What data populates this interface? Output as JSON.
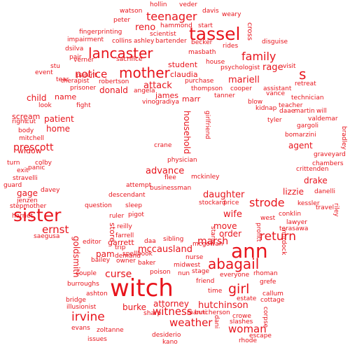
{
  "color": "#e8141c",
  "words": [
    "hollin",
    "veder",
    "watson",
    "davis",
    "weary",
    "peter",
    "teenager",
    "hammond",
    "start",
    "fingerprinting",
    "tassel",
    "scientist",
    "collins",
    "ashley",
    "bartender",
    "becker",
    "rides",
    "disguise",
    "impairment",
    "reno",
    "dsilva",
    "lancaster",
    "masbath",
    "sacrifice",
    "family",
    "verner",
    "pair",
    "house",
    "stu",
    "visit",
    "psychologist",
    "event",
    "mother",
    "student",
    "parent",
    "claudia",
    "rage",
    "tear",
    "notice",
    "therapist",
    "s",
    "robertson",
    "mariell",
    "retreat",
    "prisoner",
    "donald",
    "attack",
    "purchase",
    "assistant",
    "vance",
    "angela",
    "thompson",
    "cooper",
    "cross",
    "name",
    "james",
    "marr",
    "tanner",
    "technician",
    "child",
    "blow",
    "look",
    "fight",
    "vinogradiya",
    "teacher",
    "kidnap",
    "daae",
    "martin",
    "will",
    "scream",
    "patient",
    "right",
    "cut",
    "tyler",
    "valdemar",
    "gargoli",
    "body",
    "home",
    "girlfriend",
    "bomarzini",
    "mitchell",
    "household",
    "agent",
    "prescott",
    "crane",
    "graveyard",
    "widow",
    "bradley",
    "chambers",
    "turn",
    "colby",
    "physician",
    "crittenden",
    "exit",
    "panic",
    "advance",
    "flee",
    "mckinley",
    "stravelli",
    "drake",
    "guard",
    "attempt",
    "businessman",
    "daughter",
    "lizzie",
    "danelli",
    "davey",
    "gage",
    "descendant",
    "strode",
    "jenzen",
    "stockard",
    "price",
    "kessler",
    "stepmother",
    "question",
    "sleep",
    "travel",
    "sister",
    "conklin",
    "harriet",
    "ruler",
    "pigot",
    "move",
    "wife",
    "west",
    "riley",
    "ernst",
    "reilly",
    "lawyer",
    "saegusa",
    "terasawa",
    "farrell",
    "store",
    "order",
    "return",
    "profitt",
    "garrett",
    "editor",
    "daa",
    "marsh",
    "starie",
    "goldsmith",
    "mcgowan",
    "sibling",
    "trip",
    "pam",
    "spellbook",
    "mccausland",
    "murdock",
    "bailey",
    "demand",
    "nurse",
    "ann",
    "owner",
    "baker",
    "midwest",
    "curse",
    "abagail",
    "couple",
    "poison",
    "nun",
    "rhoman",
    "burroughs",
    "stage",
    "witch",
    "grefe",
    "friend",
    "everyone",
    "girl",
    "ashton",
    "time",
    "estate",
    "callum",
    "bridge",
    "cottage",
    "illusionist",
    "attorney",
    "hutchinson",
    "burke",
    "sharp",
    "manni",
    "butcherson",
    "irvine",
    "corpse",
    "crowe",
    "slashes",
    "dani",
    "witness",
    "weather",
    "woman",
    "evans",
    "zoltanne",
    "desiderio",
    "escape",
    "issues",
    "kano",
    "rhode"
  ]
}
